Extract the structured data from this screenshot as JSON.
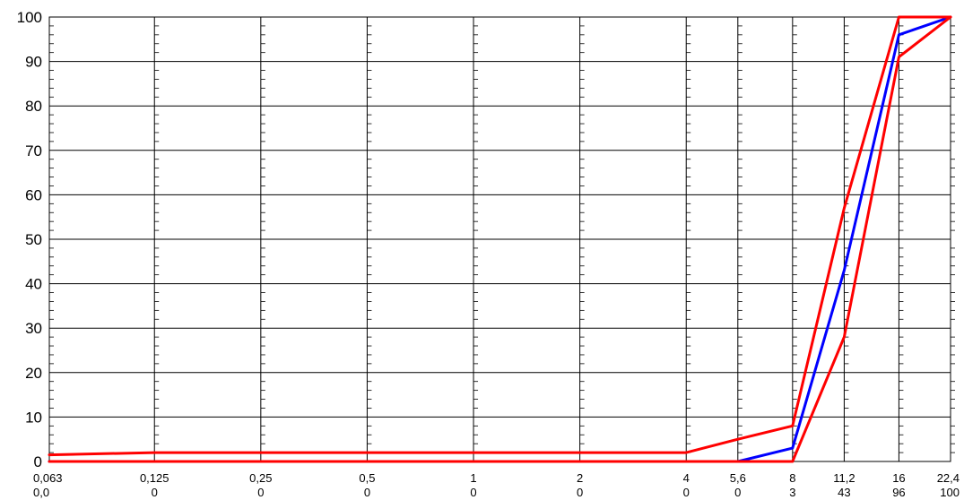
{
  "chart_data": {
    "type": "line",
    "x_scale": "log",
    "x_ticks": [
      "0,063",
      "0,125",
      "0,25",
      "0,5",
      "1",
      "2",
      "4",
      "5,6",
      "8",
      "11,2",
      "16",
      "22,4"
    ],
    "x_values": [
      0.063,
      0.125,
      0.25,
      0.5,
      1,
      2,
      4,
      5.6,
      8,
      11.2,
      16,
      22.4
    ],
    "x_secondary_labels": [
      "0,0",
      "0",
      "0",
      "0",
      "0",
      "0",
      "0",
      "0",
      "3",
      "43",
      "96",
      "100"
    ],
    "y_ticks": [
      "0",
      "10",
      "20",
      "30",
      "40",
      "50",
      "60",
      "70",
      "80",
      "90",
      "100"
    ],
    "ylim": [
      0,
      100
    ],
    "grid": true,
    "series": [
      {
        "color": "#0000ff",
        "x": [
          0.063,
          0.125,
          0.25,
          0.5,
          1,
          2,
          4,
          5.6,
          8,
          11.2,
          16,
          22.4
        ],
        "y": [
          0,
          0,
          0,
          0,
          0,
          0,
          0,
          0,
          3,
          43,
          96,
          100
        ]
      },
      {
        "color": "#ff0000",
        "x": [
          0.063,
          0.125,
          0.25,
          0.5,
          1,
          2,
          4,
          5.6,
          8,
          11.2,
          16,
          22.4
        ],
        "y": [
          1.5,
          2,
          2,
          2,
          2,
          2,
          2,
          5,
          8,
          57,
          100,
          100
        ]
      },
      {
        "color": "#ff0000",
        "x": [
          0.063,
          0.125,
          0.25,
          0.5,
          1,
          2,
          4,
          5.6,
          8,
          11.2,
          16,
          22.4
        ],
        "y": [
          0,
          0,
          0,
          0,
          0,
          0,
          0,
          0,
          0,
          28,
          91,
          100
        ]
      }
    ]
  }
}
